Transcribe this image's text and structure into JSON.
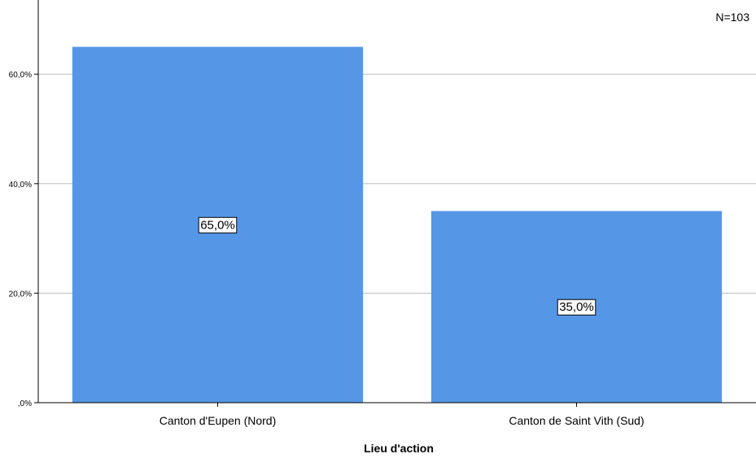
{
  "chart_data": {
    "type": "bar",
    "categories": [
      "Canton d'Eupen (Nord)",
      "Canton de Saint Vith (Sud)"
    ],
    "values": [
      65.0,
      35.0
    ],
    "value_labels": [
      "65,0%",
      "35,0%"
    ],
    "xlabel": "Lieu d'action",
    "ylabel": "",
    "ylim": [
      0,
      70
    ],
    "yticks": [
      0,
      20,
      40,
      60
    ],
    "ytick_labels": [
      ",0%",
      "20,0%",
      "40,0%",
      "60,0%"
    ],
    "annotation": "N=103",
    "grid": true,
    "bar_color": "#5596e6",
    "grid_color": "#bdbdbd"
  }
}
